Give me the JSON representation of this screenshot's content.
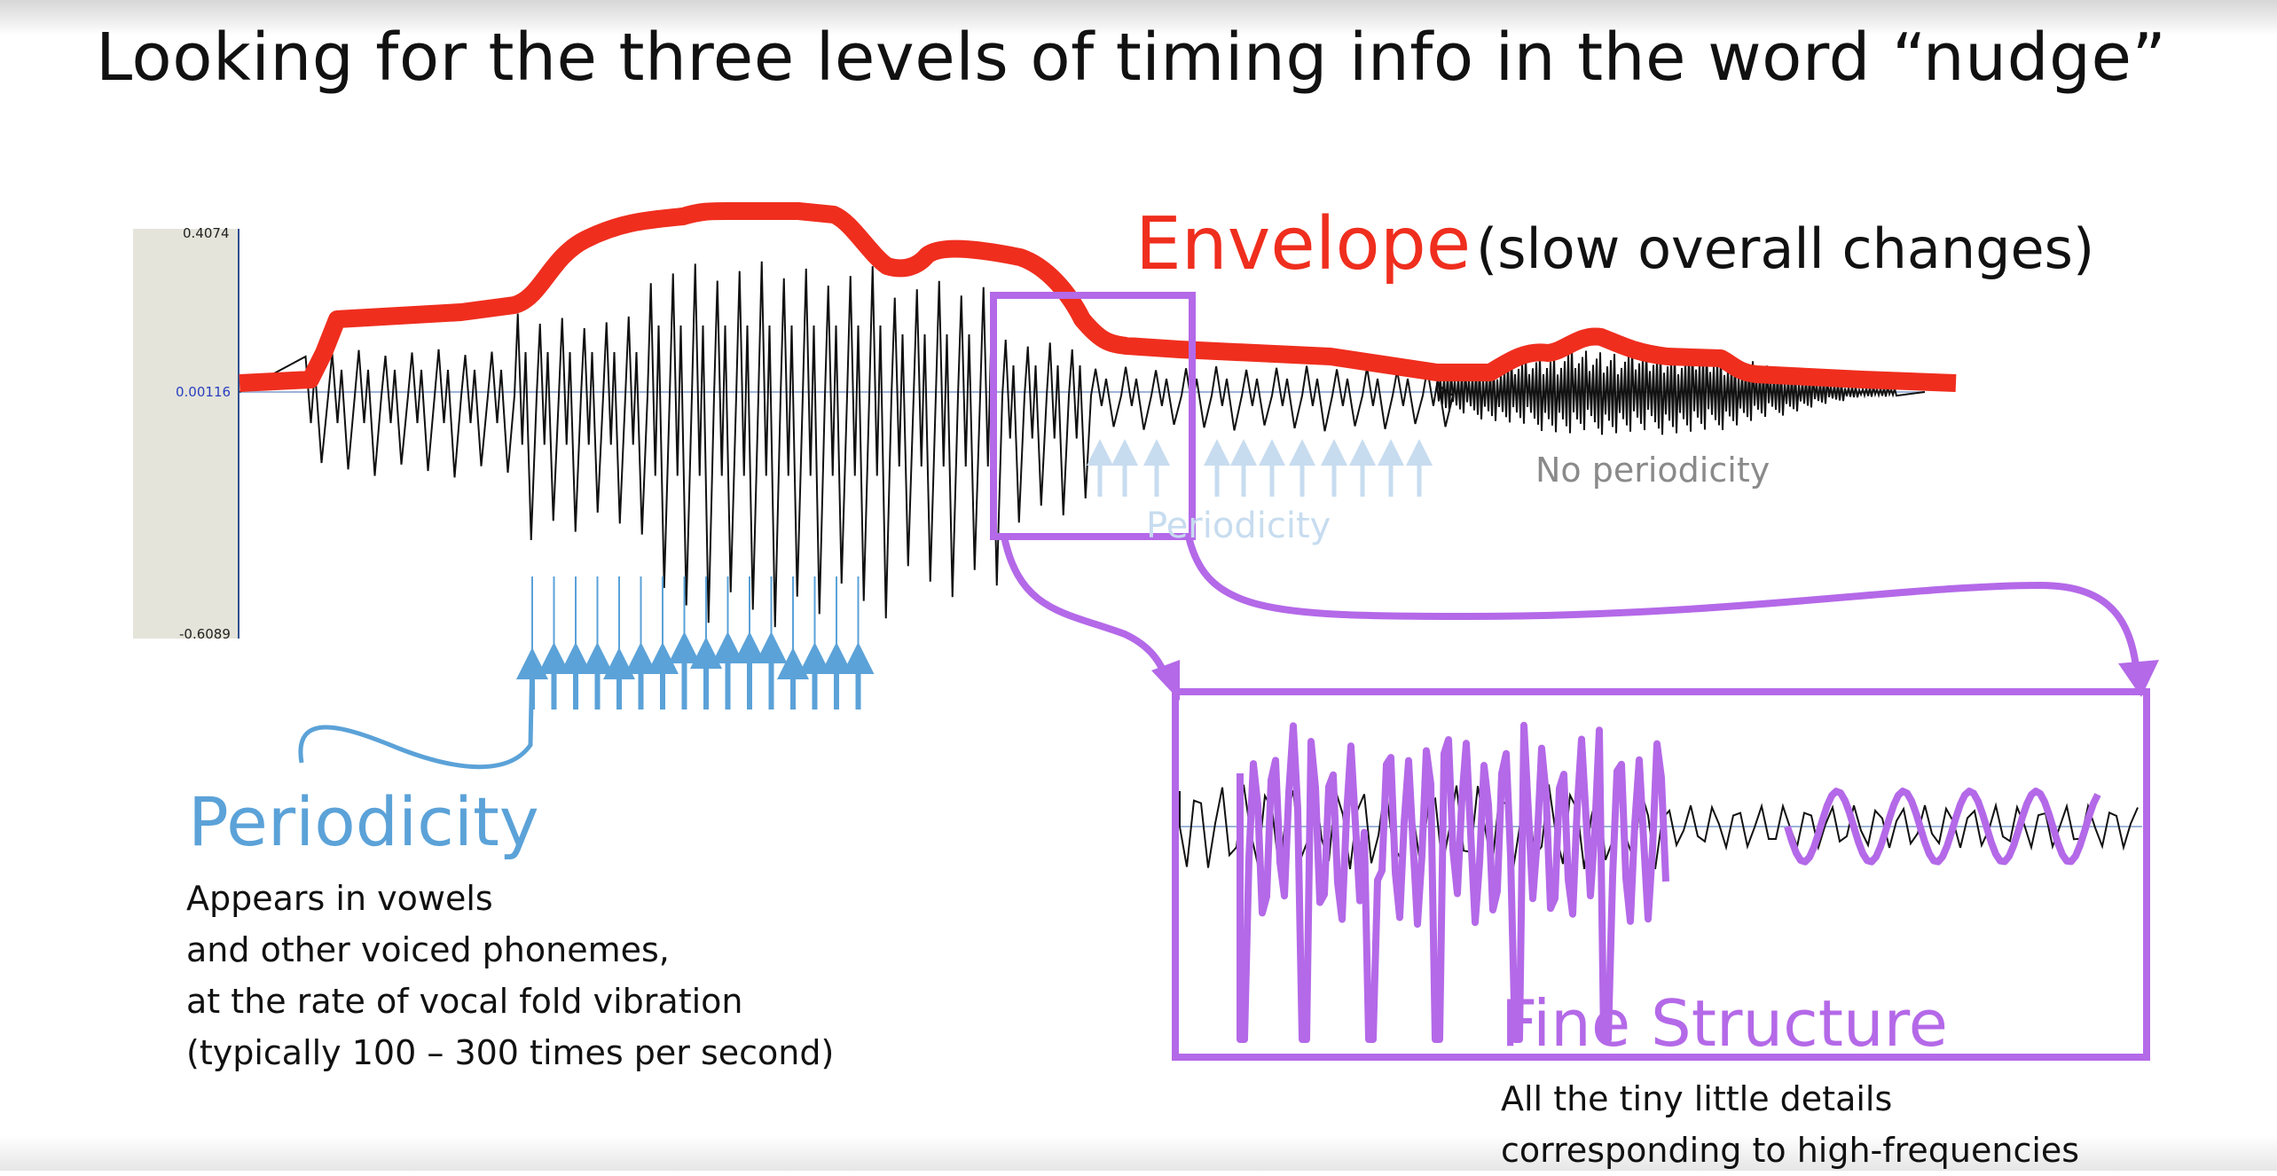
{
  "slide": {
    "title": "Looking for the three levels of timing info in the word “nudge”"
  },
  "waveform": {
    "y_max_label": "0.4074",
    "y_zero_label": "0.00116",
    "y_min_label": "-0.6089"
  },
  "envelope": {
    "title": "Envelope",
    "subtitle": "(slow overall changes)",
    "color": "#ef2e1e"
  },
  "periodicity": {
    "title": "Periodicity",
    "faint_label": "Periodicity",
    "no_periodicity_label": "No periodicity",
    "description_lines": [
      "Appears in vowels",
      "and other voiced phonemes,",
      "at the rate of vocal fold vibration",
      "(typically 100 – 300 times per second)"
    ],
    "color": "#5ba2d8"
  },
  "fine_structure": {
    "title": "Fine Structure",
    "description_lines": [
      "All the tiny little details",
      "corresponding to high-frequencies"
    ],
    "color": "#b469e8"
  }
}
